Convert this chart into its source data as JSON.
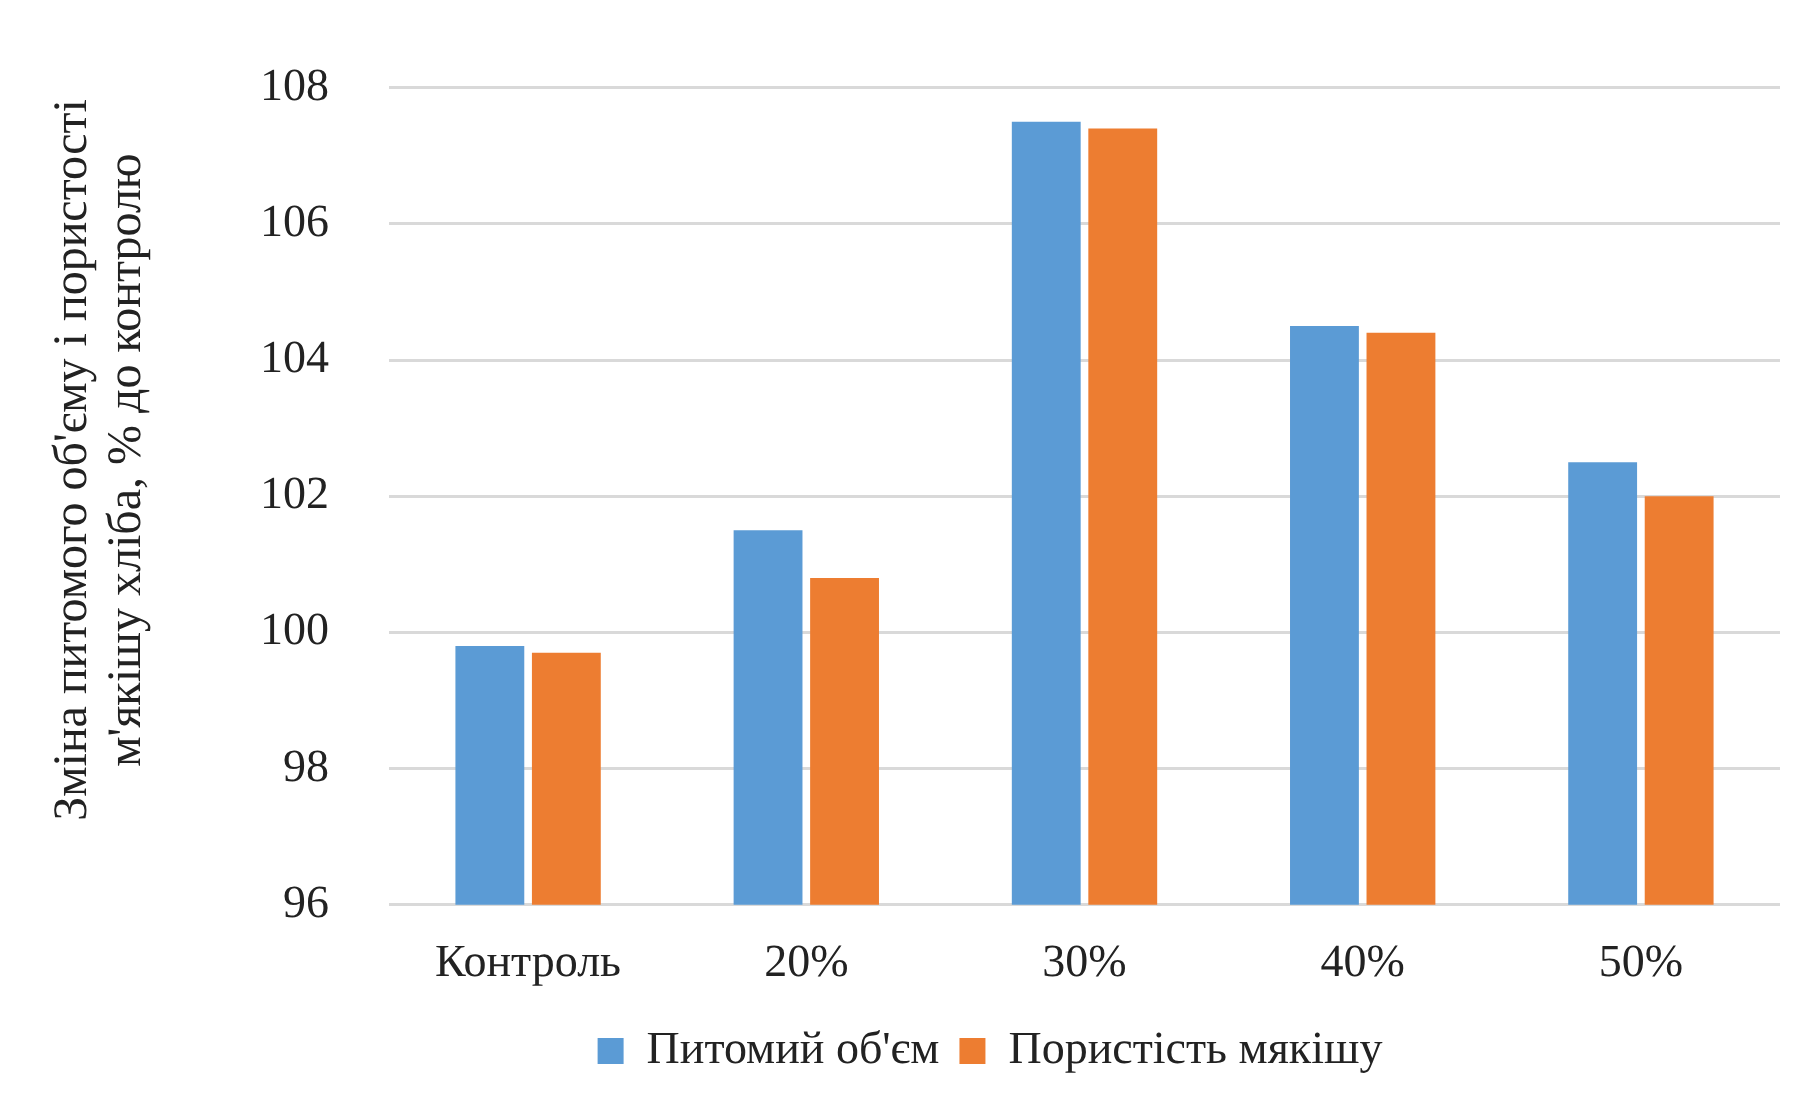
{
  "chart_data": {
    "type": "bar",
    "ylabel": "Зміна питомого об'єму  і пористості м'якішу хліба, % до контролю",
    "categories": [
      "Контроль",
      "20%",
      "30%",
      "40%",
      "50%"
    ],
    "series": [
      {
        "name": "Питомий об'єм",
        "color": "#5b9bd5",
        "values": [
          99.8,
          101.5,
          107.5,
          104.5,
          102.5
        ]
      },
      {
        "name": "Пористість мякішу",
        "color": "#ed7d31",
        "values": [
          99.7,
          100.8,
          107.4,
          104.4,
          102.0
        ]
      }
    ],
    "ylim": [
      96,
      108
    ],
    "yticks": [
      96,
      98,
      100,
      102,
      104,
      106,
      108
    ],
    "grid": "y",
    "legend": "bottom"
  }
}
